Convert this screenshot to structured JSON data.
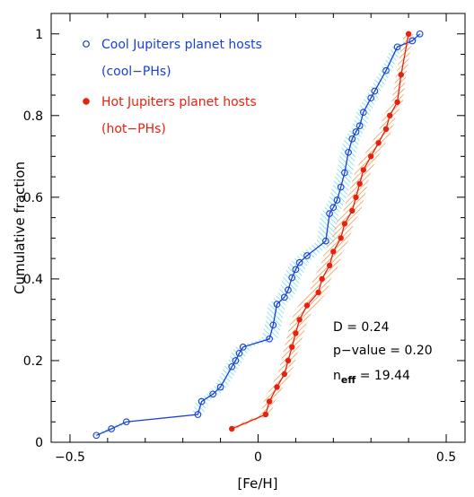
{
  "chart_data": {
    "type": "line",
    "title": "",
    "xlabel": "[Fe/H]",
    "ylabel": "Cumulative fraction",
    "xlim": [
      -0.55,
      0.55
    ],
    "ylim": [
      0,
      1.05
    ],
    "x_ticks": [
      -0.5,
      0,
      0.5
    ],
    "x_tick_labels": [
      "−0.5",
      "0",
      "0.5"
    ],
    "y_ticks": [
      0,
      0.2,
      0.4,
      0.6,
      0.8,
      1
    ],
    "y_tick_labels": [
      "0",
      "0.2",
      "0.4",
      "0.6",
      "0.8",
      "1"
    ],
    "grid": false,
    "legend_position": "top-left",
    "series": [
      {
        "name": "Cool Jupiters planet hosts",
        "name2": "(cool−PHs)",
        "color": "#1a3fd6",
        "band_color": "#4fd6e6",
        "marker": "open-circle",
        "x": [
          -0.43,
          -0.39,
          -0.35,
          -0.16,
          -0.15,
          -0.12,
          -0.1,
          -0.07,
          -0.06,
          -0.05,
          -0.04,
          0.03,
          0.04,
          0.05,
          0.07,
          0.08,
          0.09,
          0.1,
          0.11,
          0.13,
          0.18,
          0.19,
          0.2,
          0.21,
          0.22,
          0.23,
          0.24,
          0.25,
          0.26,
          0.27,
          0.28,
          0.3,
          0.31,
          0.34,
          0.37,
          0.41,
          0.43
        ],
        "y": [
          0.017,
          0.033,
          0.05,
          0.068,
          0.1,
          0.118,
          0.135,
          0.185,
          0.2,
          0.218,
          0.233,
          0.253,
          0.287,
          0.338,
          0.355,
          0.373,
          0.403,
          0.423,
          0.44,
          0.457,
          0.493,
          0.56,
          0.575,
          0.593,
          0.625,
          0.66,
          0.71,
          0.743,
          0.76,
          0.775,
          0.808,
          0.843,
          0.86,
          0.91,
          0.968,
          0.983,
          1.0
        ]
      },
      {
        "name": "Hot Jupiters planet hosts",
        "name2": "(hot−PHs)",
        "color": "#e8210e",
        "band_color": "#e8822a",
        "marker": "filled-circle",
        "x": [
          -0.07,
          0.02,
          0.03,
          0.05,
          0.07,
          0.08,
          0.09,
          0.1,
          0.11,
          0.13,
          0.16,
          0.17,
          0.19,
          0.2,
          0.22,
          0.23,
          0.25,
          0.26,
          0.27,
          0.28,
          0.3,
          0.32,
          0.34,
          0.35,
          0.37,
          0.38,
          0.4
        ],
        "y": [
          0.033,
          0.068,
          0.1,
          0.135,
          0.167,
          0.2,
          0.233,
          0.267,
          0.3,
          0.335,
          0.367,
          0.4,
          0.433,
          0.467,
          0.5,
          0.535,
          0.567,
          0.6,
          0.633,
          0.667,
          0.7,
          0.733,
          0.767,
          0.8,
          0.833,
          0.9,
          1.0
        ]
      }
    ],
    "annotations": {
      "d_stat": "D = 0.24",
      "p_value": "p−value = 0.20",
      "n_prefix": "n",
      "n_sub": "eff",
      "n_value": " = 19.44"
    }
  }
}
